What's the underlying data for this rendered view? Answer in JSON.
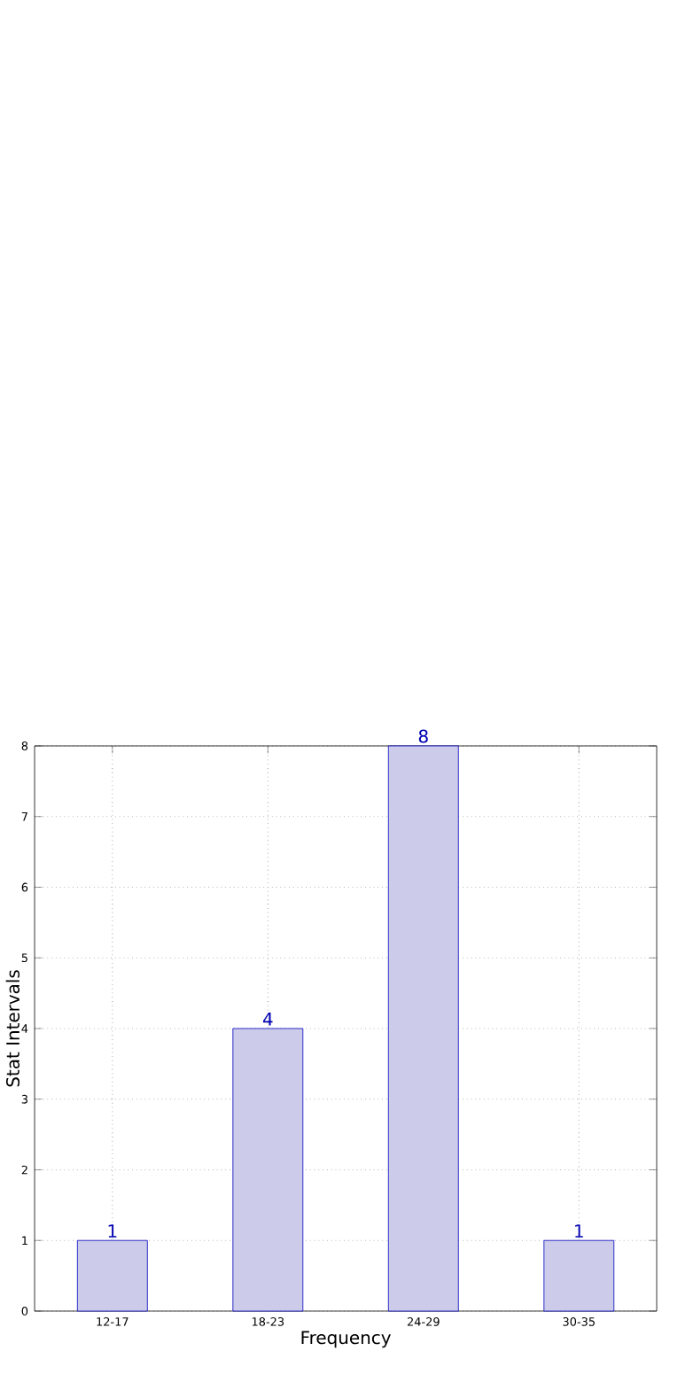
{
  "chart_data": {
    "type": "bar",
    "xlabel": "Frequency",
    "ylabel": "Stat Intervals",
    "categories": [
      "12-17",
      "18-23",
      "24-29",
      "30-35"
    ],
    "values": [
      1,
      4,
      8,
      1
    ],
    "color": "#ccccea",
    "ylim": [
      0,
      8
    ],
    "yticks": [
      0,
      1,
      2,
      3,
      4,
      5,
      6,
      7,
      8
    ],
    "grid": true,
    "data_labels": true
  }
}
